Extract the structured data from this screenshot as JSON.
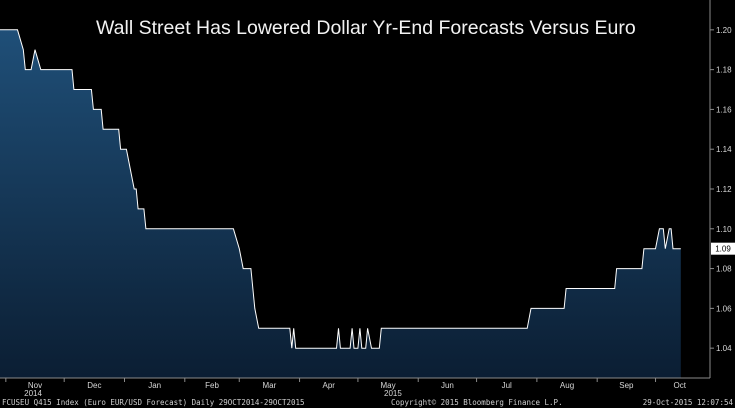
{
  "chart_data": {
    "type": "area",
    "title": "Wall Street Has Lowered Dollar Yr-End Forecasts Versus Euro",
    "xlabel": "",
    "ylabel": "",
    "x_range": [
      "2014-10-29",
      "2015-10-29"
    ],
    "ylim": [
      1.025,
      1.215
    ],
    "y_ticks": [
      "1.04",
      "1.06",
      "1.08",
      "1.10",
      "1.12",
      "1.14",
      "1.16",
      "1.18",
      "1.20"
    ],
    "x_ticks": [
      {
        "date": "2014-11-01",
        "label": "Nov"
      },
      {
        "date": "2014-12-01",
        "label": "Dec"
      },
      {
        "date": "2015-01-01",
        "label": "Jan"
      },
      {
        "date": "2015-02-01",
        "label": "Feb"
      },
      {
        "date": "2015-03-01",
        "label": "Mar"
      },
      {
        "date": "2015-04-01",
        "label": "Apr"
      },
      {
        "date": "2015-05-01",
        "label": "May"
      },
      {
        "date": "2015-06-01",
        "label": "Jun"
      },
      {
        "date": "2015-07-01",
        "label": "Jul"
      },
      {
        "date": "2015-08-01",
        "label": "Aug"
      },
      {
        "date": "2015-09-01",
        "label": "Sep"
      },
      {
        "date": "2015-10-01",
        "label": "Oct"
      }
    ],
    "year_labels": [
      {
        "date": "2014-11-15",
        "label": "2014"
      },
      {
        "date": "2015-05-19",
        "label": "2015"
      }
    ],
    "last_value_label": "1.09",
    "last_value": 1.09,
    "grid": false,
    "series": [
      {
        "points": [
          [
            "2014-10-29",
            1.2
          ],
          [
            "2014-11-07",
            1.2
          ],
          [
            "2014-11-10",
            1.19
          ],
          [
            "2014-11-11",
            1.18
          ],
          [
            "2014-11-14",
            1.18
          ],
          [
            "2014-11-16",
            1.19
          ],
          [
            "2014-11-19",
            1.18
          ],
          [
            "2014-12-05",
            1.18
          ],
          [
            "2014-12-06",
            1.17
          ],
          [
            "2014-12-15",
            1.17
          ],
          [
            "2014-12-16",
            1.16
          ],
          [
            "2014-12-20",
            1.16
          ],
          [
            "2014-12-21",
            1.15
          ],
          [
            "2014-12-29",
            1.15
          ],
          [
            "2014-12-30",
            1.14
          ],
          [
            "2015-01-02",
            1.14
          ],
          [
            "2015-01-04",
            1.13
          ],
          [
            "2015-01-06",
            1.12
          ],
          [
            "2015-01-07",
            1.12
          ],
          [
            "2015-01-08",
            1.11
          ],
          [
            "2015-01-11",
            1.11
          ],
          [
            "2015-01-12",
            1.1
          ],
          [
            "2015-01-16",
            1.1
          ],
          [
            "2015-02-05",
            1.1
          ],
          [
            "2015-02-13",
            1.1
          ],
          [
            "2015-02-26",
            1.1
          ],
          [
            "2015-03-01",
            1.09
          ],
          [
            "2015-03-03",
            1.08
          ],
          [
            "2015-03-07",
            1.08
          ],
          [
            "2015-03-09",
            1.06
          ],
          [
            "2015-03-11",
            1.05
          ],
          [
            "2015-03-27",
            1.05
          ],
          [
            "2015-03-28",
            1.04
          ],
          [
            "2015-03-29",
            1.05
          ],
          [
            "2015-03-30",
            1.04
          ],
          [
            "2015-04-20",
            1.04
          ],
          [
            "2015-04-21",
            1.05
          ],
          [
            "2015-04-22",
            1.04
          ],
          [
            "2015-04-27",
            1.04
          ],
          [
            "2015-04-28",
            1.05
          ],
          [
            "2015-04-29",
            1.04
          ],
          [
            "2015-05-01",
            1.04
          ],
          [
            "2015-05-02",
            1.05
          ],
          [
            "2015-05-03",
            1.04
          ],
          [
            "2015-05-05",
            1.04
          ],
          [
            "2015-05-06",
            1.05
          ],
          [
            "2015-05-08",
            1.04
          ],
          [
            "2015-05-12",
            1.04
          ],
          [
            "2015-05-13",
            1.05
          ],
          [
            "2015-07-27",
            1.05
          ],
          [
            "2015-07-29",
            1.06
          ],
          [
            "2015-08-15",
            1.06
          ],
          [
            "2015-08-16",
            1.07
          ],
          [
            "2015-09-10",
            1.07
          ],
          [
            "2015-09-11",
            1.08
          ],
          [
            "2015-09-24",
            1.08
          ],
          [
            "2015-09-25",
            1.09
          ],
          [
            "2015-10-01",
            1.09
          ],
          [
            "2015-10-03",
            1.1
          ],
          [
            "2015-10-05",
            1.1
          ],
          [
            "2015-10-06",
            1.09
          ],
          [
            "2015-10-08",
            1.1
          ],
          [
            "2015-10-09",
            1.1
          ],
          [
            "2015-10-10",
            1.09
          ],
          [
            "2015-10-14",
            1.09
          ]
        ]
      }
    ]
  },
  "footer": {
    "left": "FCUSEU Q415 Index (Euro EUR/USD Forecast)  Daily 29OCT2014-29OCT2015",
    "center": "Copyright© 2015 Bloomberg Finance L.P.",
    "right": "29-Oct-2015 12:07:54"
  },
  "colors": {
    "background": "#000000",
    "area_top": "#1f4f78",
    "area_bottom": "#0b1e33",
    "line": "#ffffff",
    "axis": "#8a8a8a",
    "text": "#d8d8d8"
  }
}
